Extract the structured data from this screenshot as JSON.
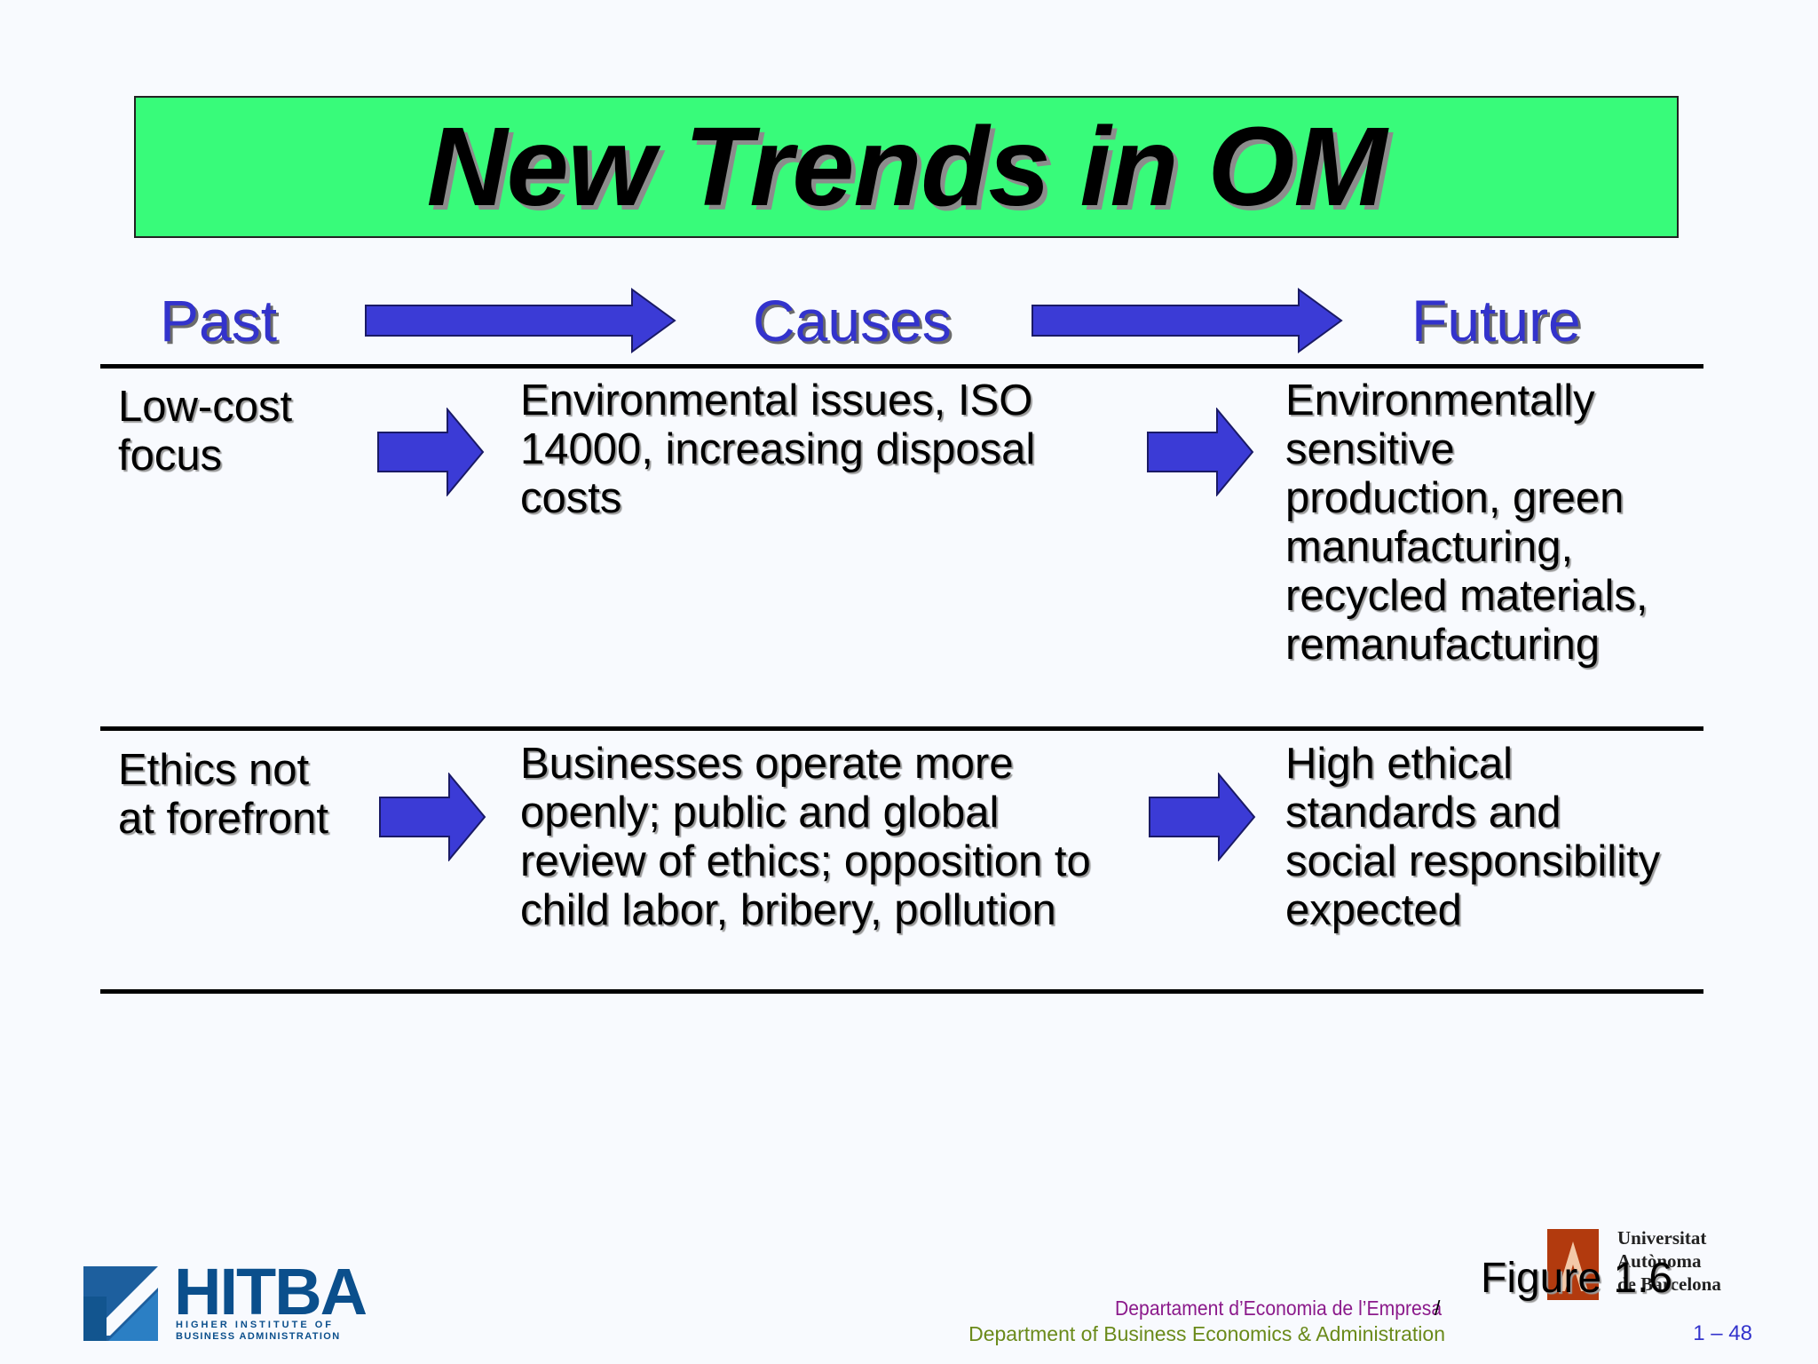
{
  "slide": {
    "title": "New Trends in OM",
    "columns": {
      "past": "Past",
      "causes": "Causes",
      "future": "Future"
    },
    "rows": [
      {
        "past": [
          "Low-cost",
          "focus"
        ],
        "causes": [
          "Environmental issues, ISO",
          "14000, increasing disposal",
          "costs"
        ],
        "future": [
          "Environmentally",
          "sensitive",
          "production, green",
          "manufacturing,",
          "recycled materials,",
          "remanufacturing"
        ]
      },
      {
        "past": [
          "Ethics not",
          "at forefront"
        ],
        "causes": [
          "Businesses operate more",
          "openly; public and global",
          "review of ethics; opposition to",
          "child labor, bribery, pollution"
        ],
        "future": [
          "High ethical",
          "standards and",
          "social responsibility",
          "expected"
        ]
      }
    ],
    "figure_label": "Figure 1.6",
    "page_number": "1 – 48"
  },
  "footer": {
    "logo_left": {
      "name": "HITBA",
      "line1": "HIGHER INSTITUTE OF",
      "line2": "BUSINESS ADMINISTRATION"
    },
    "dept_ca": "Departament d’Economia de l’Empresa",
    "dept_slash": "/",
    "dept_en": "Department of Business Economics & Administration",
    "university": [
      "Universitat",
      "Autònoma",
      "de Barcelona"
    ]
  },
  "colors": {
    "title_bg": "#38fb7a",
    "accent_blue": "#3333cc",
    "arrow_fill": "#3b3bd6"
  }
}
